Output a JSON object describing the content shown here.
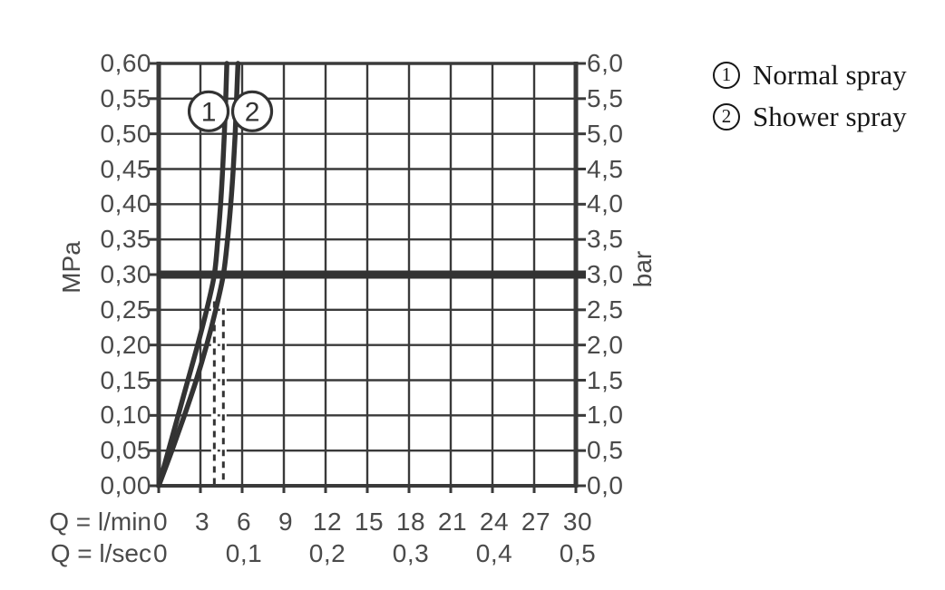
{
  "colors": {
    "curve": "#333333",
    "grid": "#3a3a3a",
    "axis_text": "#4a4a4a",
    "legend_text": "#161616",
    "background": "#ffffff"
  },
  "legend": {
    "items": [
      {
        "symbol": "1",
        "label": "Normal spray"
      },
      {
        "symbol": "2",
        "label": "Shower spray"
      }
    ]
  },
  "chart_data": {
    "type": "line",
    "grid": true,
    "x_axis": {
      "label_lmin": "Q = l/min",
      "label_lsec": "Q = l/sec",
      "range_lmin": [
        0,
        30
      ],
      "lmin_ticks": [
        {
          "q": 0,
          "label": "0"
        },
        {
          "q": 3,
          "label": "3"
        },
        {
          "q": 6,
          "label": "6"
        },
        {
          "q": 9,
          "label": "9"
        },
        {
          "q": 12,
          "label": "12"
        },
        {
          "q": 15,
          "label": "15"
        },
        {
          "q": 18,
          "label": "18"
        },
        {
          "q": 21,
          "label": "21"
        },
        {
          "q": 24,
          "label": "24"
        },
        {
          "q": 27,
          "label": "27"
        },
        {
          "q": 30,
          "label": "30"
        }
      ],
      "lsec_ticks": [
        {
          "q": 0,
          "label": "0"
        },
        {
          "q": 6,
          "label": "0,1"
        },
        {
          "q": 12,
          "label": "0,2"
        },
        {
          "q": 18,
          "label": "0,3"
        },
        {
          "q": 24,
          "label": "0,4"
        },
        {
          "q": 30,
          "label": "0,5"
        }
      ]
    },
    "y_left": {
      "label": "MPa",
      "range": [
        0,
        0.6
      ],
      "ticks": [
        {
          "v": 0.0,
          "label": "0,00"
        },
        {
          "v": 0.05,
          "label": "0,05"
        },
        {
          "v": 0.1,
          "label": "0,10"
        },
        {
          "v": 0.15,
          "label": "0,15"
        },
        {
          "v": 0.2,
          "label": "0,20"
        },
        {
          "v": 0.25,
          "label": "0,25"
        },
        {
          "v": 0.3,
          "label": "0,30"
        },
        {
          "v": 0.35,
          "label": "0,35"
        },
        {
          "v": 0.4,
          "label": "0,40"
        },
        {
          "v": 0.45,
          "label": "0,45"
        },
        {
          "v": 0.5,
          "label": "0,50"
        },
        {
          "v": 0.55,
          "label": "0,55"
        },
        {
          "v": 0.6,
          "label": "0,60"
        }
      ]
    },
    "y_right": {
      "label": "bar",
      "range": [
        0,
        6
      ],
      "ticks": [
        {
          "v": 0.0,
          "label": "0,0"
        },
        {
          "v": 0.05,
          "label": "0,5"
        },
        {
          "v": 0.1,
          "label": "1,0"
        },
        {
          "v": 0.15,
          "label": "1,5"
        },
        {
          "v": 0.2,
          "label": "2,0"
        },
        {
          "v": 0.25,
          "label": "2,5"
        },
        {
          "v": 0.3,
          "label": "3,0"
        },
        {
          "v": 0.35,
          "label": "3,5"
        },
        {
          "v": 0.4,
          "label": "4,0"
        },
        {
          "v": 0.45,
          "label": "4,5"
        },
        {
          "v": 0.5,
          "label": "5,0"
        },
        {
          "v": 0.55,
          "label": "5,5"
        },
        {
          "v": 0.6,
          "label": "6,0"
        }
      ]
    },
    "reference_line_mpa": 0.3,
    "dashed_lines": [
      {
        "q": 4.0,
        "top_mpa": 0.262
      },
      {
        "q": 4.65,
        "top_mpa": 0.252
      }
    ],
    "series": [
      {
        "id": 1,
        "name": "Normal spray",
        "slug": "normal-spray",
        "marker": {
          "q": 3.59,
          "mpa": 0.532,
          "label": "1"
        },
        "points": [
          [
            0,
            0
          ],
          [
            0.7,
            0.05
          ],
          [
            1.4,
            0.1
          ],
          [
            2.1,
            0.15
          ],
          [
            2.8,
            0.2
          ],
          [
            3.45,
            0.25
          ],
          [
            4.0,
            0.3
          ],
          [
            4.25,
            0.35
          ],
          [
            4.45,
            0.4
          ],
          [
            4.6,
            0.45
          ],
          [
            4.72,
            0.5
          ],
          [
            4.82,
            0.55
          ],
          [
            4.9,
            0.6
          ]
        ]
      },
      {
        "id": 2,
        "name": "Shower spray",
        "slug": "shower-spray",
        "marker": {
          "q": 6.72,
          "mpa": 0.532,
          "label": "2"
        },
        "points": [
          [
            0,
            0
          ],
          [
            0.95,
            0.05
          ],
          [
            1.85,
            0.1
          ],
          [
            2.7,
            0.15
          ],
          [
            3.45,
            0.2
          ],
          [
            4.1,
            0.25
          ],
          [
            4.65,
            0.3
          ],
          [
            4.95,
            0.35
          ],
          [
            5.18,
            0.4
          ],
          [
            5.36,
            0.45
          ],
          [
            5.5,
            0.5
          ],
          [
            5.6,
            0.55
          ],
          [
            5.7,
            0.6
          ]
        ]
      }
    ]
  }
}
